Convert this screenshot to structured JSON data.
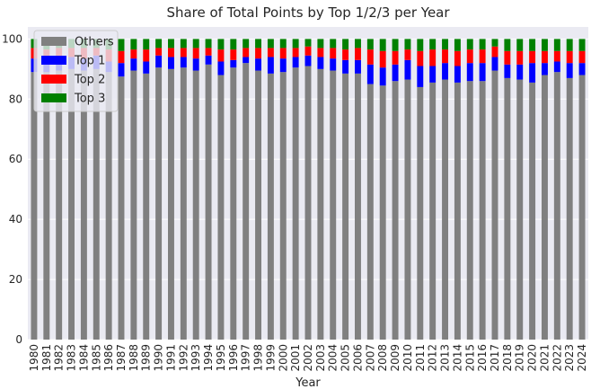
{
  "chart_data": {
    "type": "bar",
    "stacked": true,
    "title": "Share of Total Points by Top 1/2/3 per Year",
    "xlabel": "Year",
    "ylabel": "",
    "ylim": [
      0,
      104
    ],
    "yticks": [
      "0",
      "20",
      "40",
      "60",
      "80",
      "100"
    ],
    "grid": true,
    "legend_position": "top-left",
    "categories": [
      "1980",
      "1981",
      "1982",
      "1983",
      "1984",
      "1985",
      "1986",
      "1987",
      "1988",
      "1989",
      "1990",
      "1991",
      "1992",
      "1993",
      "1994",
      "1995",
      "1996",
      "1997",
      "1998",
      "1999",
      "2000",
      "2001",
      "2002",
      "2003",
      "2004",
      "2005",
      "2006",
      "2007",
      "2008",
      "2009",
      "2010",
      "2011",
      "2012",
      "2013",
      "2014",
      "2015",
      "2016",
      "2017",
      "2018",
      "2019",
      "2020",
      "2021",
      "2022",
      "2023",
      "2024"
    ],
    "series": [
      {
        "name": "Others",
        "color": "#808080",
        "values": [
          89.0,
          89.0,
          89.5,
          90.0,
          89.5,
          90.0,
          89.0,
          87.5,
          89.5,
          88.5,
          90.5,
          90.0,
          90.5,
          89.5,
          91.5,
          88.0,
          90.5,
          92.0,
          89.5,
          88.5,
          89.0,
          90.5,
          91.0,
          90.0,
          89.5,
          88.5,
          88.5,
          85.0,
          84.5,
          86.0,
          86.5,
          84.0,
          85.5,
          86.5,
          85.5,
          86.0,
          86.0,
          89.5,
          87.0,
          86.5,
          85.5,
          88.0,
          89.0,
          87.0,
          88.0
        ]
      },
      {
        "name": "Top 1",
        "color": "#0000ff",
        "values": [
          4.5,
          4.0,
          4.5,
          4.0,
          4.0,
          4.5,
          3.5,
          4.5,
          4.0,
          4.0,
          4.0,
          4.0,
          3.5,
          4.0,
          3.0,
          4.5,
          2.5,
          2.0,
          4.0,
          5.5,
          4.5,
          3.5,
          3.5,
          4.0,
          4.0,
          4.5,
          4.5,
          6.5,
          6.0,
          5.5,
          6.5,
          7.0,
          5.5,
          5.5,
          5.5,
          6.0,
          6.0,
          4.5,
          4.5,
          5.0,
          6.5,
          4.0,
          3.5,
          5.0,
          4.0
        ]
      },
      {
        "name": "Top 2",
        "color": "#ff0000",
        "values": [
          3.5,
          3.5,
          3.0,
          3.0,
          3.5,
          2.5,
          4.0,
          4.0,
          3.0,
          4.0,
          2.5,
          3.0,
          3.0,
          3.5,
          2.5,
          4.0,
          3.5,
          3.0,
          3.5,
          3.0,
          3.5,
          3.0,
          3.0,
          3.0,
          3.5,
          3.5,
          4.0,
          5.0,
          5.5,
          4.5,
          3.5,
          5.0,
          5.5,
          4.5,
          5.0,
          4.5,
          4.5,
          3.5,
          4.5,
          4.5,
          4.0,
          4.0,
          3.5,
          4.0,
          4.0
        ]
      },
      {
        "name": "Top 3",
        "color": "#008000",
        "values": [
          3.0,
          3.5,
          3.0,
          3.0,
          3.0,
          3.0,
          3.5,
          4.0,
          3.5,
          3.5,
          3.0,
          3.0,
          3.0,
          3.0,
          3.0,
          3.5,
          3.5,
          3.0,
          3.0,
          3.0,
          3.0,
          3.0,
          2.5,
          3.0,
          3.0,
          3.5,
          3.0,
          3.5,
          4.0,
          4.0,
          3.5,
          4.0,
          3.5,
          3.5,
          4.0,
          3.5,
          3.5,
          2.5,
          4.0,
          4.0,
          4.0,
          4.0,
          4.0,
          4.0,
          4.0
        ]
      }
    ]
  }
}
